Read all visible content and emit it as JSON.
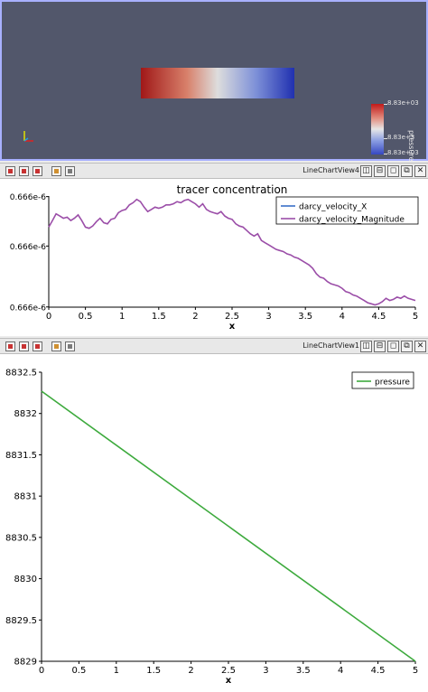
{
  "render_view": {
    "colorbar": {
      "title": "pressure",
      "labels": [
        "8.83e+03",
        "8.83e+3",
        "8.83e+03"
      ]
    }
  },
  "toolbars": [
    {
      "title": "LineChartView4",
      "buttons": [
        "◫",
        "⊟",
        "◻",
        "⧉",
        "✕"
      ]
    },
    {
      "title": "LineChartView1",
      "buttons": [
        "◫",
        "⊟",
        "◻",
        "⧉",
        "✕"
      ]
    }
  ],
  "chart_data": [
    {
      "type": "line",
      "title": "tracer concentration",
      "xlabel": "x",
      "ylabel": "",
      "xlim": [
        0,
        5
      ],
      "x_ticks": [
        "0",
        "0.5",
        "1",
        "1.5",
        "2",
        "2.5",
        "3",
        "3.5",
        "4",
        "4.5",
        "5"
      ],
      "y_ticks": [
        "0.666e-6",
        "0.666e-6",
        "0.666e-6"
      ],
      "legend": "top-right",
      "series": [
        {
          "name": "darcy_velocity_X",
          "color": "#3a6fc8",
          "values": []
        },
        {
          "name": "darcy_velocity_Magnitude",
          "color": "#9b4ea8",
          "x": [
            0,
            0.05,
            0.1,
            0.15,
            0.2,
            0.25,
            0.3,
            0.35,
            0.4,
            0.45,
            0.5,
            0.55,
            0.6,
            0.65,
            0.7,
            0.75,
            0.8,
            0.85,
            0.9,
            0.95,
            1.0,
            1.05,
            1.1,
            1.15,
            1.2,
            1.25,
            1.3,
            1.35,
            1.4,
            1.45,
            1.5,
            1.55,
            1.6,
            1.65,
            1.7,
            1.75,
            1.8,
            1.85,
            1.9,
            1.95,
            2.0,
            2.05,
            2.1,
            2.15,
            2.2,
            2.25,
            2.3,
            2.35,
            2.4,
            2.45,
            2.5,
            2.55,
            2.6,
            2.65,
            2.7,
            2.75,
            2.8,
            2.85,
            2.9,
            2.95,
            3.0,
            3.05,
            3.1,
            3.15,
            3.2,
            3.25,
            3.3,
            3.35,
            3.4,
            3.45,
            3.5,
            3.55,
            3.6,
            3.65,
            3.7,
            3.75,
            3.8,
            3.85,
            3.9,
            3.95,
            4.0,
            4.05,
            4.1,
            4.15,
            4.2,
            4.25,
            4.3,
            4.35,
            4.4,
            4.45,
            4.5,
            4.55,
            4.6,
            4.65,
            4.7,
            4.75,
            4.8,
            4.85,
            4.9,
            4.95,
            5.0
          ],
          "y": [
            0.72,
            0.78,
            0.84,
            0.82,
            0.8,
            0.81,
            0.78,
            0.8,
            0.83,
            0.78,
            0.72,
            0.71,
            0.73,
            0.77,
            0.8,
            0.76,
            0.75,
            0.79,
            0.8,
            0.85,
            0.87,
            0.88,
            0.92,
            0.94,
            0.97,
            0.95,
            0.9,
            0.86,
            0.88,
            0.9,
            0.89,
            0.9,
            0.92,
            0.92,
            0.93,
            0.95,
            0.94,
            0.96,
            0.97,
            0.95,
            0.93,
            0.9,
            0.93,
            0.88,
            0.86,
            0.85,
            0.84,
            0.86,
            0.82,
            0.8,
            0.79,
            0.75,
            0.73,
            0.72,
            0.69,
            0.66,
            0.64,
            0.66,
            0.6,
            0.58,
            0.56,
            0.54,
            0.52,
            0.51,
            0.5,
            0.48,
            0.47,
            0.45,
            0.44,
            0.42,
            0.4,
            0.38,
            0.35,
            0.3,
            0.27,
            0.26,
            0.23,
            0.21,
            0.2,
            0.19,
            0.17,
            0.14,
            0.13,
            0.11,
            0.1,
            0.08,
            0.06,
            0.04,
            0.03,
            0.02,
            0.03,
            0.05,
            0.08,
            0.06,
            0.07,
            0.09,
            0.08,
            0.1,
            0.08,
            0.07,
            0.06
          ]
        }
      ]
    },
    {
      "type": "line",
      "title": "",
      "xlabel": "x",
      "ylabel": "",
      "xlim": [
        0,
        5
      ],
      "ylim": [
        8829,
        8832.5
      ],
      "x_ticks": [
        "0",
        "0.5",
        "1",
        "1.5",
        "2",
        "2.5",
        "3",
        "3.5",
        "4",
        "4.5",
        "5"
      ],
      "y_ticks": [
        "8829",
        "8829.5",
        "8830",
        "8830.5",
        "8831",
        "8831.5",
        "8832",
        "8832.5"
      ],
      "legend": "top-right",
      "series": [
        {
          "name": "pressure",
          "color": "#3daa3d",
          "x": [
            0,
            5
          ],
          "y": [
            8832.27,
            8829.0
          ]
        }
      ]
    }
  ]
}
